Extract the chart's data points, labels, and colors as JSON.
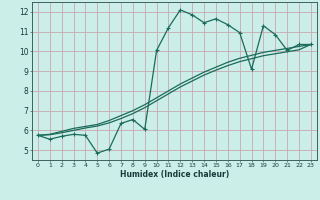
{
  "xlabel": "Humidex (Indice chaleur)",
  "bg_color": "#cceee8",
  "line_color": "#1a6b5a",
  "grid_color": "#c8a8b0",
  "xlim": [
    -0.5,
    23.5
  ],
  "ylim": [
    4.5,
    12.5
  ],
  "xticks": [
    0,
    1,
    2,
    3,
    4,
    5,
    6,
    7,
    8,
    9,
    10,
    11,
    12,
    13,
    14,
    15,
    16,
    17,
    18,
    19,
    20,
    21,
    22,
    23
  ],
  "yticks": [
    5,
    6,
    7,
    8,
    9,
    10,
    11,
    12
  ],
  "jagged_x": [
    0,
    1,
    2,
    3,
    4,
    5,
    6,
    7,
    8,
    9,
    10,
    11,
    12,
    13,
    14,
    15,
    16,
    17,
    18,
    19,
    20,
    21,
    22,
    23
  ],
  "jagged_y": [
    5.75,
    5.55,
    5.7,
    5.8,
    5.75,
    4.85,
    5.05,
    6.35,
    6.55,
    6.05,
    10.05,
    11.2,
    12.1,
    11.85,
    11.45,
    11.65,
    11.35,
    10.95,
    9.1,
    11.3,
    10.85,
    10.05,
    10.35,
    10.35
  ],
  "smooth1_x": [
    0,
    1,
    2,
    3,
    4,
    5,
    6,
    7,
    8,
    9,
    10,
    11,
    12,
    13,
    14,
    15,
    16,
    17,
    18,
    19,
    20,
    21,
    22,
    23
  ],
  "smooth1_y": [
    5.75,
    5.8,
    5.95,
    6.1,
    6.2,
    6.3,
    6.5,
    6.75,
    7.0,
    7.3,
    7.65,
    8.0,
    8.35,
    8.65,
    8.95,
    9.2,
    9.45,
    9.65,
    9.8,
    9.95,
    10.05,
    10.15,
    10.25,
    10.35
  ],
  "smooth2_x": [
    0,
    1,
    2,
    3,
    4,
    5,
    6,
    7,
    8,
    9,
    10,
    11,
    12,
    13,
    14,
    15,
    16,
    17,
    18,
    19,
    20,
    21,
    22,
    23
  ],
  "smooth2_y": [
    5.75,
    5.78,
    5.88,
    6.0,
    6.12,
    6.22,
    6.38,
    6.6,
    6.85,
    7.15,
    7.5,
    7.85,
    8.2,
    8.5,
    8.8,
    9.05,
    9.28,
    9.48,
    9.63,
    9.78,
    9.88,
    9.98,
    10.08,
    10.35
  ]
}
